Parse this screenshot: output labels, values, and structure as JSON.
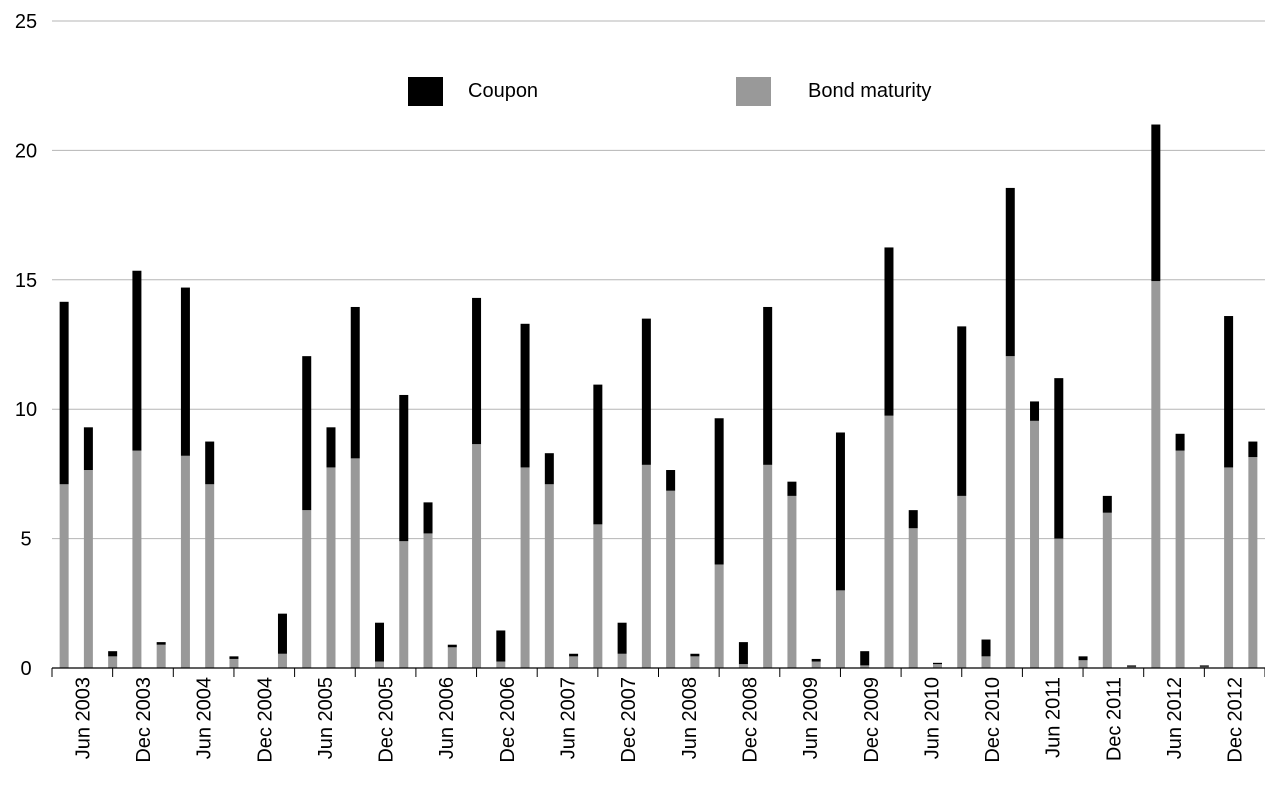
{
  "chart_data": {
    "type": "bar",
    "stacked": true,
    "y_axis": {
      "ylim": [
        0,
        25
      ],
      "ticks": [
        0,
        5,
        10,
        15,
        20,
        25
      ],
      "grid": true
    },
    "x_tick_labels": [
      "Jun 2003",
      "Dec 2003",
      "Jun 2004",
      "Dec 2004",
      "Jun 2005",
      "Dec 2005",
      "Jun 2006",
      "Dec 2006",
      "Jun 2007",
      "Dec 2007",
      "Jun 2008",
      "Dec 2008",
      "Jun 2009",
      "Dec 2009",
      "Jun 2010",
      "Dec 2010",
      "Jun 2011",
      "Dec 2011",
      "Jun 2012",
      "Dec 2012"
    ],
    "legend_position": "top",
    "series": [
      {
        "name": "Bond maturity",
        "color": "#999999",
        "values": [
          7.1,
          7.65,
          0.45,
          8.4,
          0.9,
          8.2,
          7.1,
          0.35,
          0,
          0.55,
          6.1,
          7.75,
          8.1,
          0.25,
          4.9,
          5.2,
          0.8,
          8.65,
          0.25,
          7.75,
          7.1,
          0.45,
          5.55,
          0.55,
          7.85,
          6.85,
          0.45,
          4.0,
          0.15,
          7.85,
          6.65,
          0.25,
          3.0,
          0.1,
          9.75,
          5.4,
          0.15,
          6.65,
          0.45,
          12.05,
          9.55,
          5.0,
          0.3,
          6.0,
          0.05,
          14.95,
          8.4,
          0.05,
          7.75,
          8.15
        ]
      },
      {
        "name": "Coupon",
        "color": "#000000",
        "values": [
          7.05,
          1.65,
          0.2,
          6.95,
          0.1,
          6.5,
          1.65,
          0.1,
          0,
          1.55,
          5.95,
          1.55,
          5.85,
          1.5,
          5.65,
          1.2,
          0.1,
          5.65,
          1.2,
          5.55,
          1.2,
          0.1,
          5.4,
          1.2,
          5.65,
          0.8,
          0.1,
          5.65,
          0.85,
          6.1,
          0.55,
          0.1,
          6.1,
          0.55,
          6.5,
          0.7,
          0.05,
          6.55,
          0.65,
          6.5,
          0.75,
          6.2,
          0.15,
          0.65,
          0.05,
          6.05,
          0.65,
          0.05,
          5.85,
          0.6
        ]
      }
    ]
  }
}
